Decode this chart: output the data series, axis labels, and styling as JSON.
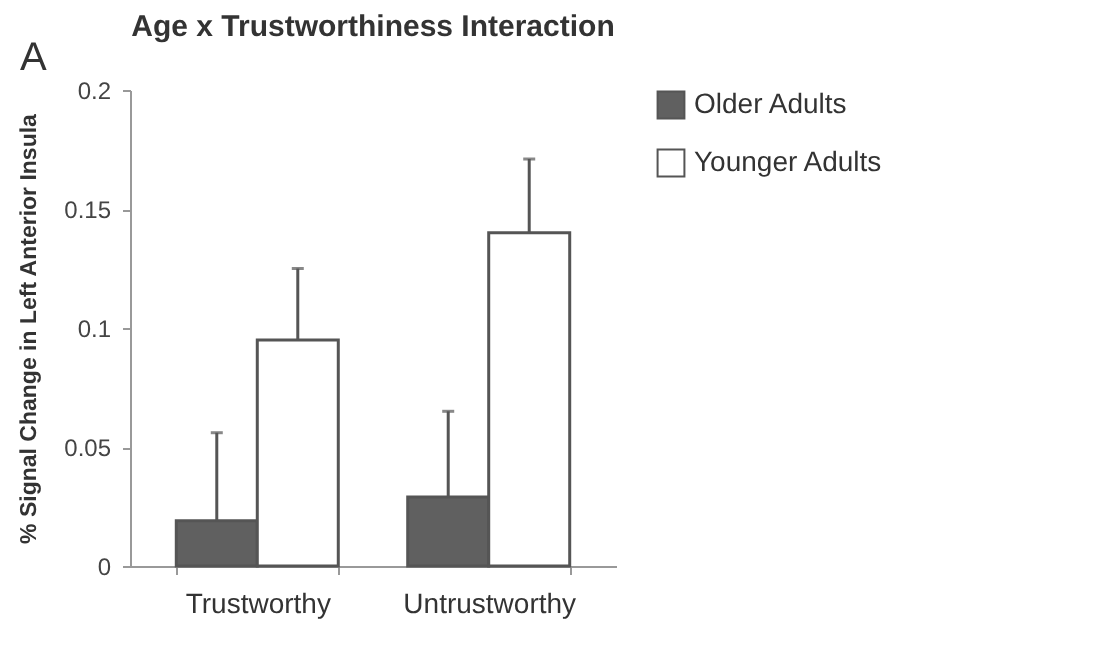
{
  "chart_data": {
    "type": "bar",
    "title": "Age x Trustworthiness Interaction",
    "ylabel": "% Signal Change in Left Anterior Insula",
    "categories": [
      "Trustworthy",
      "Untrustworthy"
    ],
    "series": [
      {
        "name": "Older Adults",
        "color": "#606060",
        "values": [
          0.019,
          0.029
        ],
        "errors": [
          [
            0.019,
            0.056
          ],
          [
            0.029,
            0.065
          ]
        ]
      },
      {
        "name": "Younger Adults",
        "color": "#ffffff",
        "values": [
          0.095,
          0.14
        ],
        "errors": [
          [
            0.095,
            0.125
          ],
          [
            0.14,
            0.171
          ]
        ]
      }
    ],
    "ylim": [
      0,
      0.2
    ],
    "yticks": [
      0,
      0.05,
      0.1,
      0.15,
      0.2
    ],
    "grid": false,
    "legend": "right",
    "annotations": [
      "A"
    ]
  }
}
